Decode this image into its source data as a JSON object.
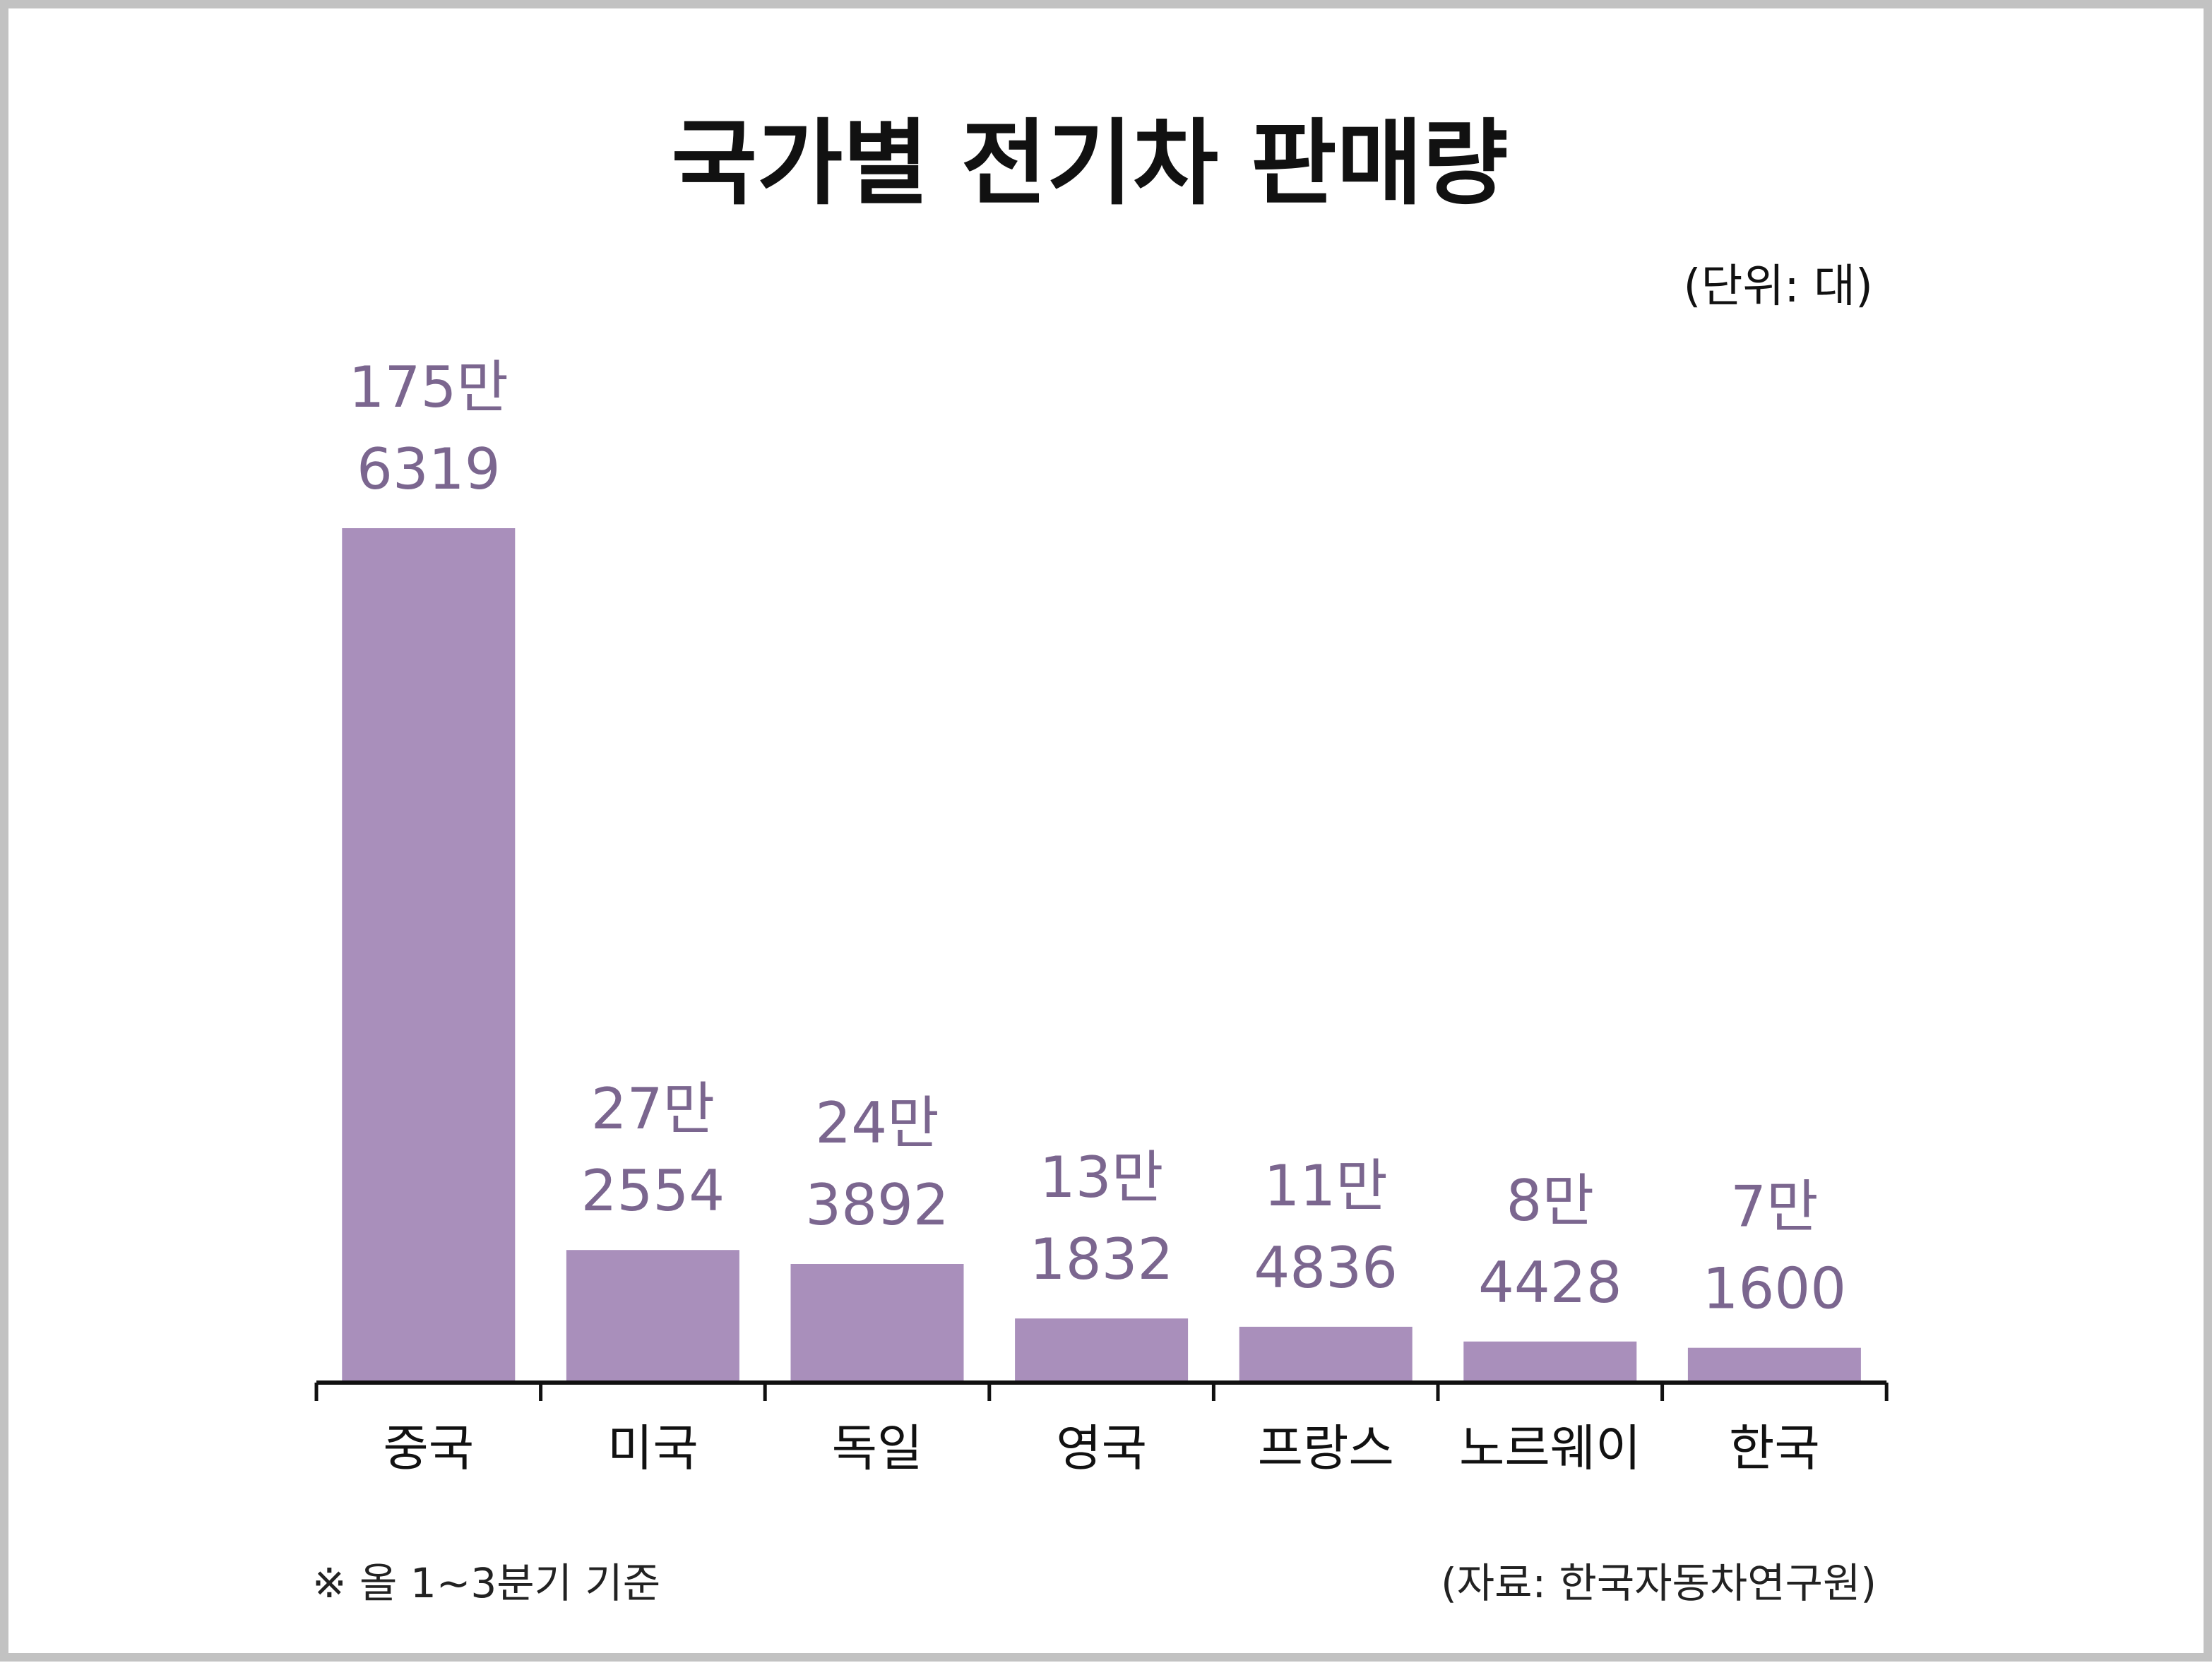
{
  "colors": {
    "bar": "#a98fbb",
    "value_label": "#7b668f",
    "axis": "#111111",
    "frame": "#c2c2c2"
  },
  "chart_data": {
    "type": "bar",
    "title": "국가별 전기차 판매량",
    "unit_label": "(단위: 대)",
    "categories": [
      "중국",
      "미국",
      "독일",
      "영국",
      "프랑스",
      "노르웨이",
      "한국"
    ],
    "values": [
      1756319,
      272554,
      243892,
      131832,
      114836,
      84428,
      71600
    ],
    "value_labels": [
      [
        "175만",
        "6319"
      ],
      [
        "27만",
        "2554"
      ],
      [
        "24만",
        "3892"
      ],
      [
        "13만",
        "1832"
      ],
      [
        "11만",
        "4836"
      ],
      [
        "8만",
        "4428"
      ],
      [
        "7만",
        "1600"
      ]
    ],
    "xlabel": "",
    "ylabel": "",
    "ylim": [
      0,
      1756319
    ],
    "grid": false,
    "footnote": "※ 올 1~3분기 기준",
    "source": "(자료: 한국자동차연구원)"
  }
}
